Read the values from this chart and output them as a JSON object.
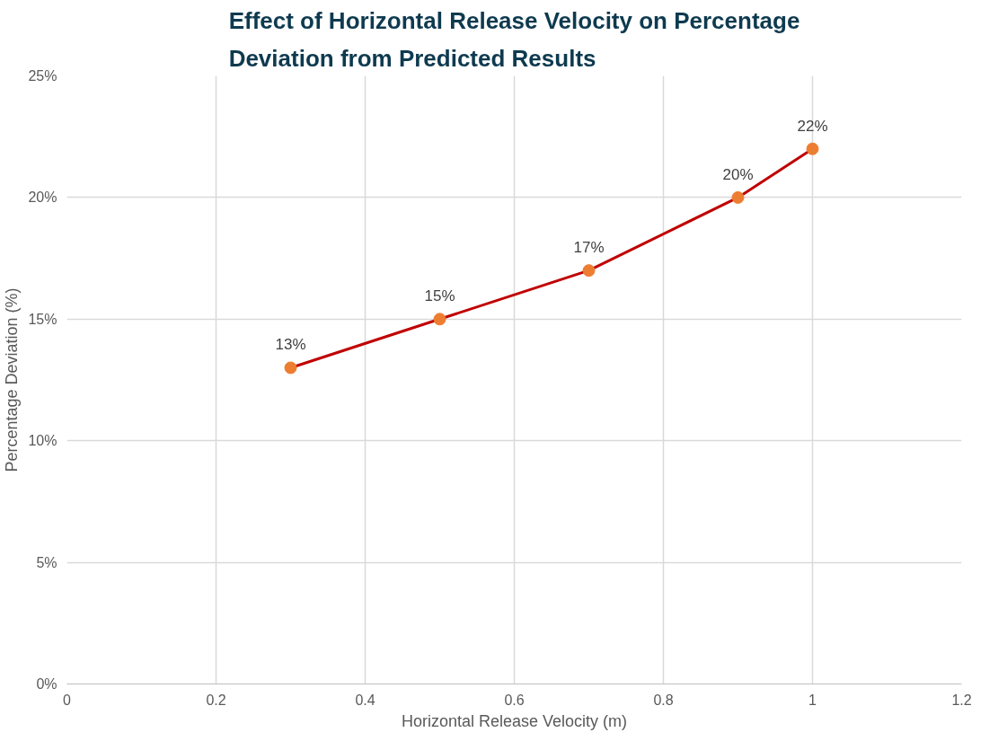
{
  "chart_data": {
    "type": "line",
    "title": "Effect of Horizontal Release Velocity on Percentage Deviation from Predicted Results",
    "xlabel": "Horizontal Release Velocity (m)",
    "ylabel": "Percentage Deviation (%)",
    "x": [
      0.3,
      0.5,
      0.7,
      0.9,
      1.0
    ],
    "series": [
      {
        "color": "#c00000",
        "colors": [
          "#ed7d31",
          "#ed7d31",
          "#ed7d31",
          "#ed7d31",
          "#ed7d31"
        ],
        "values": [
          13,
          15,
          17,
          20,
          22
        ],
        "value_labels": [
          "13%",
          "15%",
          "17%",
          "20%",
          "22%"
        ]
      }
    ],
    "xlim": [
      0,
      1.2
    ],
    "xticks": [
      0,
      0.2,
      0.4,
      0.6,
      0.8,
      1,
      1.2
    ],
    "ylim": [
      0,
      25
    ],
    "yticks": [
      {
        "value": 0,
        "label": "0%"
      },
      {
        "value": 5,
        "label": "5%"
      },
      {
        "value": 10,
        "label": "10%"
      },
      {
        "value": 15,
        "label": "15%"
      },
      {
        "value": 20,
        "label": "20%"
      },
      {
        "value": 25,
        "label": "25%"
      }
    ],
    "grid": true,
    "marker": "circle",
    "line_style": "solid"
  }
}
